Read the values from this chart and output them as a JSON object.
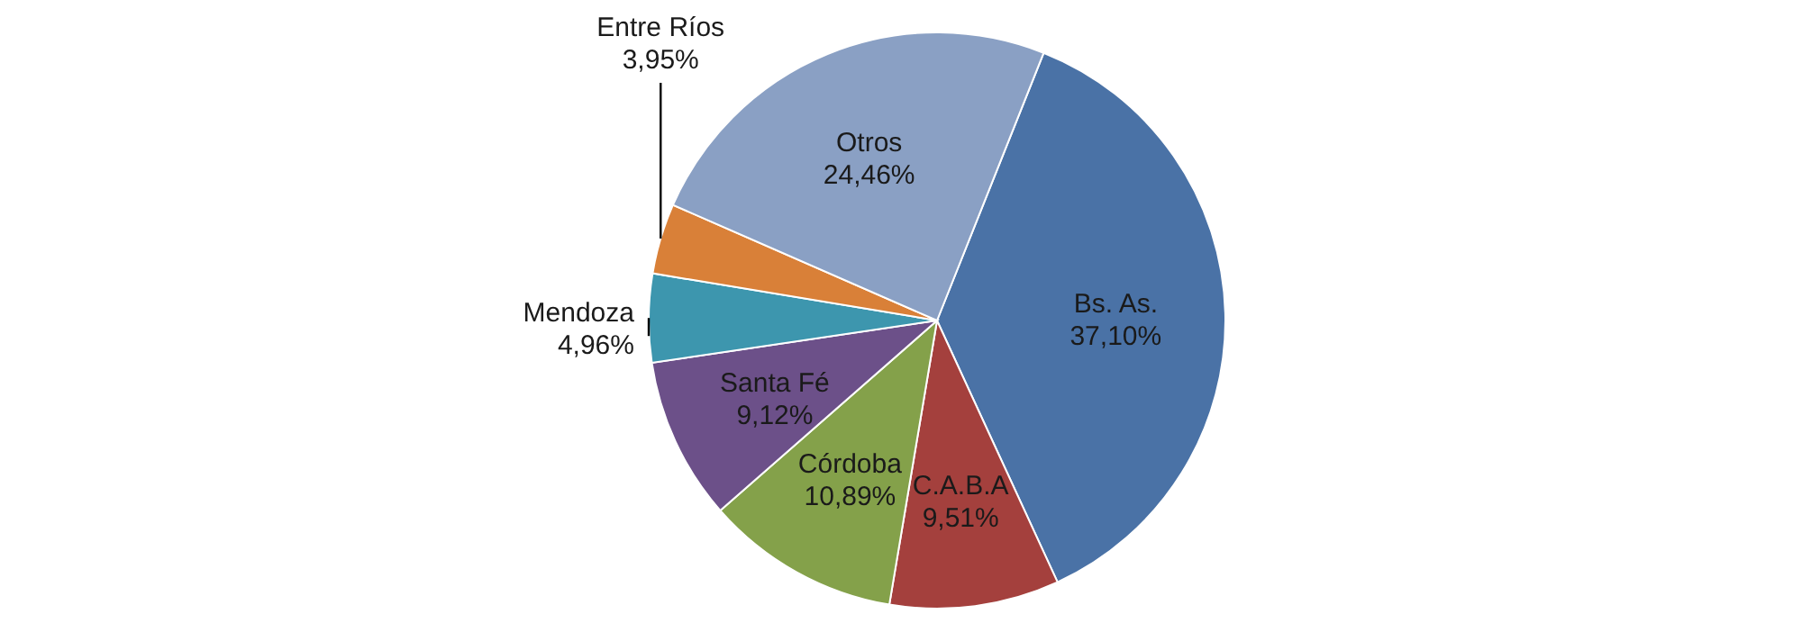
{
  "chart_data": {
    "type": "pie",
    "categories": [
      "Bs. As.",
      "C.A.B.A",
      "Córdoba",
      "Santa Fé",
      "Mendoza",
      "Entre Ríos",
      "Otros"
    ],
    "values": [
      37.1,
      9.51,
      10.89,
      9.12,
      4.96,
      3.95,
      24.46
    ],
    "value_labels": [
      "37,10%",
      "9,51%",
      "10,89%",
      "9,12%",
      "4,96%",
      "3,95%",
      "24,46%"
    ],
    "colors": [
      "#4a72a6",
      "#a4403d",
      "#84a14a",
      "#6c5089",
      "#3d96ae",
      "#d98038",
      "#8aa0c4"
    ]
  }
}
